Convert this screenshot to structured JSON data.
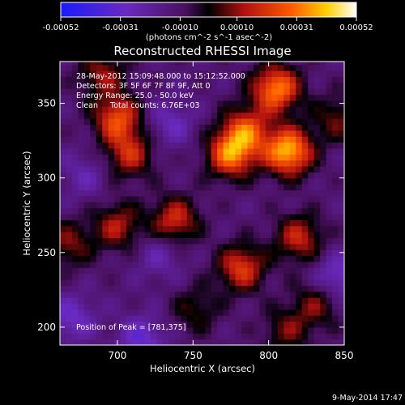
{
  "chart_data": {
    "type": "heatmap",
    "title": "Reconstructed RHESSI Image",
    "xlabel": "Heliocentric X (arcsec)",
    "ylabel": "Heliocentric Y (arcsec)",
    "xlim": [
      662,
      850
    ],
    "ylim": [
      188,
      378
    ],
    "x_ticks": [
      700,
      750,
      800,
      850
    ],
    "y_ticks": [
      200,
      250,
      300,
      350
    ],
    "colorbar": {
      "range": [
        -0.00052,
        0.00052
      ],
      "ticks": [
        "-0.00052",
        "-0.00031",
        "-0.00010",
        "0.00010",
        "0.00031",
        "0.00052"
      ],
      "unit_label": "(photons cm^-2 s^-1 asec^-2)"
    },
    "info_lines": [
      "28-May-2012 15:09:48.000 to 15:12:52.000",
      "Detectors: 3F 5F 6F 7F 8F 9F, Att 0",
      "Energy Range: 25.0 - 50.0 keV",
      "Clean     Total counts: 6.76E+03"
    ],
    "peak_label": "Position of Peak = [781,375]",
    "peak_position": [
      781,
      375
    ],
    "timestamp": "9-May-2014 17:47",
    "hot_spots": [
      {
        "x": 805,
        "y": 360,
        "value": 0.00045
      },
      {
        "x": 813,
        "y": 318,
        "value": 0.00052
      },
      {
        "x": 775,
        "y": 316,
        "value": 0.00042
      },
      {
        "x": 785,
        "y": 332,
        "value": 0.00035
      },
      {
        "x": 700,
        "y": 340,
        "value": 0.00036
      },
      {
        "x": 708,
        "y": 316,
        "value": 0.00028
      },
      {
        "x": 690,
        "y": 370,
        "value": 0.00022
      },
      {
        "x": 738,
        "y": 272,
        "value": 0.0003
      },
      {
        "x": 700,
        "y": 268,
        "value": 0.00025
      },
      {
        "x": 820,
        "y": 260,
        "value": 0.00028
      },
      {
        "x": 782,
        "y": 240,
        "value": 0.00033
      },
      {
        "x": 668,
        "y": 256,
        "value": 0.0002
      },
      {
        "x": 832,
        "y": 216,
        "value": 0.0002
      },
      {
        "x": 812,
        "y": 198,
        "value": 0.00018
      },
      {
        "x": 752,
        "y": 212,
        "value": 0.00015
      },
      {
        "x": 845,
        "y": 340,
        "value": 0.00018
      }
    ],
    "cold_spots": [
      {
        "x": 735,
        "y": 337,
        "value": -0.00015
      },
      {
        "x": 716,
        "y": 192,
        "value": -0.0002
      },
      {
        "x": 670,
        "y": 206,
        "value": -0.00018
      },
      {
        "x": 845,
        "y": 233,
        "value": -0.0002
      },
      {
        "x": 728,
        "y": 248,
        "value": -0.00012
      },
      {
        "x": 678,
        "y": 302,
        "value": -0.00012
      }
    ]
  }
}
